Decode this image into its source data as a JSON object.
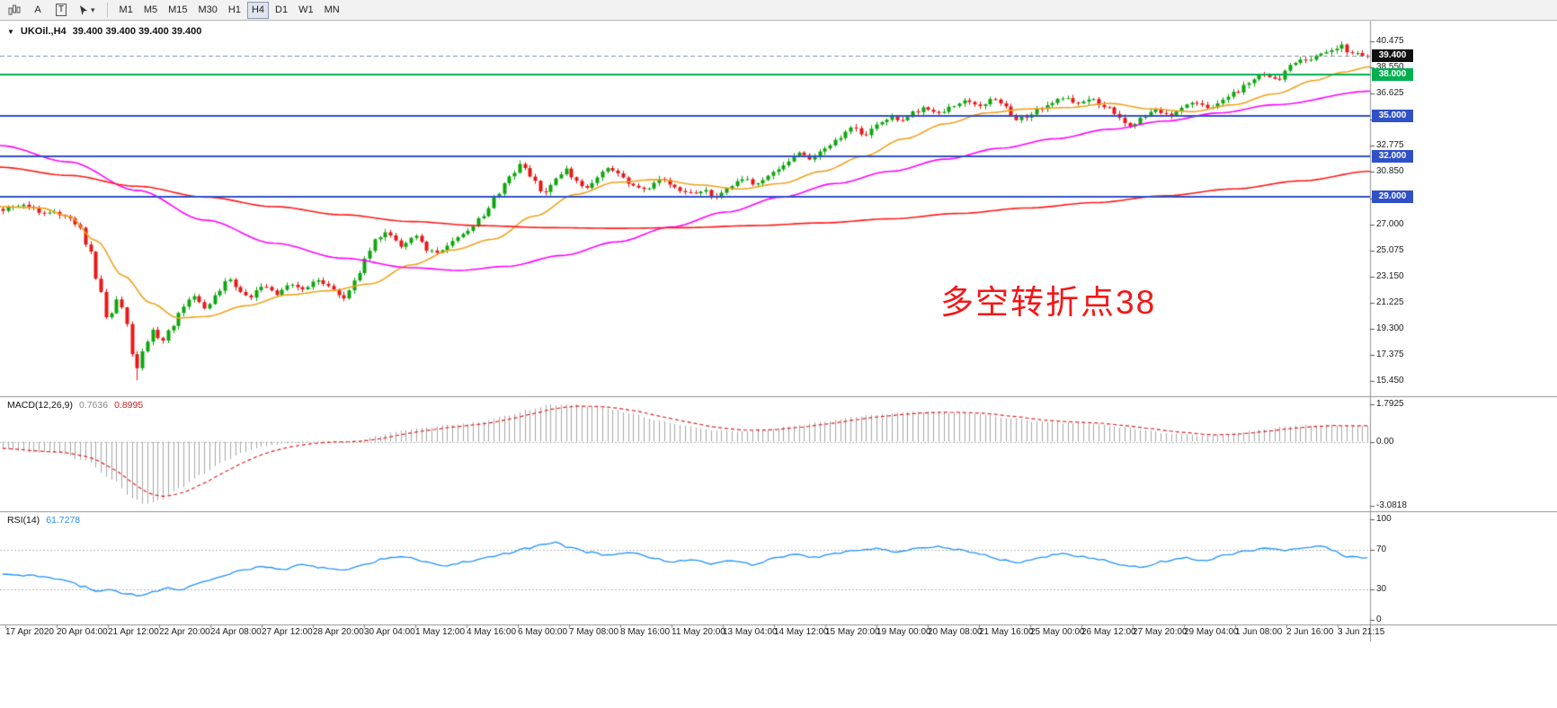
{
  "toolbar": {
    "letter_a": "A",
    "letter_t": "T",
    "chevron_glyph": "▾",
    "timeframes": [
      "M1",
      "M5",
      "M15",
      "M30",
      "H1",
      "H4",
      "D1",
      "W1",
      "MN"
    ],
    "active_timeframe": "H4"
  },
  "chart": {
    "dropdown_glyph": "▼",
    "title": "UKOil.,H4",
    "ohlc": "39.400 39.400 39.400 39.400",
    "annotation": "多空转折点38"
  },
  "macd_panel": {
    "name": "MACD(12,26,9)",
    "value_main": "0.7636",
    "value_signal": "0.8995",
    "axis_labels": [
      "1.7925",
      "0.00",
      "-3.0818"
    ]
  },
  "rsi_panel": {
    "name": "RSI(14)",
    "value": "61.7278",
    "axis_labels": [
      "100",
      "70",
      "30",
      "0"
    ]
  },
  "price_axis_labels": [
    "40.475",
    "38.550",
    "36.625",
    "34.700",
    "32.775",
    "30.850",
    "28.925",
    "27.000",
    "25.075",
    "23.150",
    "21.225",
    "19.300",
    "17.375",
    "15.450"
  ],
  "time_axis_labels": [
    "17 Apr 2020",
    "20 Apr 04:00",
    "21 Apr 12:00",
    "22 Apr 20:00",
    "24 Apr 08:00",
    "27 Apr 12:00",
    "28 Apr 20:00",
    "30 Apr 04:00",
    "1 May 12:00",
    "4 May 16:00",
    "6 May 00:00",
    "7 May 08:00",
    "8 May 16:00",
    "11 May 20:00",
    "13 May 04:00",
    "14 May 12:00",
    "15 May 20:00",
    "19 May 00:00",
    "20 May 08:00",
    "21 May 16:00",
    "25 May 00:00",
    "26 May 12:00",
    "27 May 20:00",
    "29 May 04:00",
    "1 Jun 08:00",
    "2 Jun 16:00",
    "3 Jun 21:15"
  ],
  "chart_data": {
    "type": "candlestick",
    "symbol": "UKOil",
    "period": "H4",
    "current_price": 39.4,
    "num_candles": 265,
    "up_color": "#0fa50f",
    "down_color": "#e81717",
    "annotation_color": "#f21717",
    "low_spike": 15.5,
    "high_spike": 40.45,
    "close_path": [
      [
        0.0,
        28.1
      ],
      [
        0.015,
        28.4
      ],
      [
        0.03,
        27.9
      ],
      [
        0.045,
        27.7
      ],
      [
        0.055,
        26.9
      ],
      [
        0.063,
        25.2
      ],
      [
        0.07,
        22.6
      ],
      [
        0.077,
        19.8
      ],
      [
        0.083,
        21.4
      ],
      [
        0.089,
        20.6
      ],
      [
        0.094,
        17.6
      ],
      [
        0.098,
        16.3
      ],
      [
        0.103,
        17.8
      ],
      [
        0.11,
        19.2
      ],
      [
        0.116,
        18.2
      ],
      [
        0.123,
        19.3
      ],
      [
        0.132,
        20.9
      ],
      [
        0.14,
        21.7
      ],
      [
        0.148,
        20.9
      ],
      [
        0.157,
        21.8
      ],
      [
        0.165,
        22.9
      ],
      [
        0.172,
        22.2
      ],
      [
        0.18,
        21.6
      ],
      [
        0.19,
        22.4
      ],
      [
        0.2,
        21.9
      ],
      [
        0.21,
        22.6
      ],
      [
        0.22,
        22.1
      ],
      [
        0.23,
        22.9
      ],
      [
        0.24,
        22.3
      ],
      [
        0.25,
        21.6
      ],
      [
        0.258,
        22.8
      ],
      [
        0.266,
        24.6
      ],
      [
        0.274,
        26.0
      ],
      [
        0.282,
        26.4
      ],
      [
        0.292,
        25.4
      ],
      [
        0.302,
        26.1
      ],
      [
        0.312,
        25.1
      ],
      [
        0.32,
        24.9
      ],
      [
        0.33,
        25.9
      ],
      [
        0.34,
        26.4
      ],
      [
        0.352,
        27.6
      ],
      [
        0.362,
        29.2
      ],
      [
        0.372,
        30.6
      ],
      [
        0.38,
        31.5
      ],
      [
        0.388,
        30.4
      ],
      [
        0.396,
        29.3
      ],
      [
        0.404,
        30.2
      ],
      [
        0.412,
        31.0
      ],
      [
        0.42,
        30.3
      ],
      [
        0.428,
        29.6
      ],
      [
        0.436,
        30.5
      ],
      [
        0.444,
        31.2
      ],
      [
        0.452,
        30.6
      ],
      [
        0.462,
        29.9
      ],
      [
        0.472,
        29.6
      ],
      [
        0.482,
        30.3
      ],
      [
        0.492,
        29.8
      ],
      [
        0.502,
        29.2
      ],
      [
        0.512,
        29.5
      ],
      [
        0.522,
        29.1
      ],
      [
        0.532,
        29.8
      ],
      [
        0.542,
        30.4
      ],
      [
        0.552,
        29.9
      ],
      [
        0.562,
        30.7
      ],
      [
        0.572,
        31.4
      ],
      [
        0.582,
        32.2
      ],
      [
        0.592,
        31.8
      ],
      [
        0.602,
        32.6
      ],
      [
        0.612,
        33.4
      ],
      [
        0.622,
        34.1
      ],
      [
        0.632,
        33.6
      ],
      [
        0.642,
        34.4
      ],
      [
        0.65,
        34.9
      ],
      [
        0.658,
        34.5
      ],
      [
        0.666,
        35.2
      ],
      [
        0.676,
        35.6
      ],
      [
        0.686,
        35.1
      ],
      [
        0.696,
        35.7
      ],
      [
        0.706,
        36.1
      ],
      [
        0.716,
        35.7
      ],
      [
        0.726,
        36.3
      ],
      [
        0.734,
        35.6
      ],
      [
        0.742,
        34.7
      ],
      [
        0.75,
        34.9
      ],
      [
        0.758,
        35.5
      ],
      [
        0.768,
        35.9
      ],
      [
        0.778,
        36.4
      ],
      [
        0.788,
        35.9
      ],
      [
        0.798,
        36.2
      ],
      [
        0.808,
        35.6
      ],
      [
        0.818,
        34.9
      ],
      [
        0.826,
        34.1
      ],
      [
        0.834,
        34.8
      ],
      [
        0.844,
        35.4
      ],
      [
        0.854,
        35.0
      ],
      [
        0.864,
        35.6
      ],
      [
        0.874,
        36.0
      ],
      [
        0.884,
        35.5
      ],
      [
        0.894,
        36.2
      ],
      [
        0.904,
        36.8
      ],
      [
        0.914,
        37.5
      ],
      [
        0.924,
        38.1
      ],
      [
        0.934,
        37.7
      ],
      [
        0.944,
        38.7
      ],
      [
        0.954,
        39.1
      ],
      [
        0.964,
        39.4
      ],
      [
        0.972,
        39.8
      ],
      [
        0.98,
        40.15
      ],
      [
        0.988,
        39.6
      ],
      [
        1.0,
        39.4
      ]
    ],
    "moving_averages": [
      {
        "name": "ma-fast",
        "color": "#f0a21e",
        "path": [
          [
            0,
            28.3
          ],
          [
            0.03,
            28.2
          ],
          [
            0.05,
            27.6
          ],
          [
            0.07,
            25.8
          ],
          [
            0.09,
            23.2
          ],
          [
            0.11,
            21.2
          ],
          [
            0.13,
            20.1
          ],
          [
            0.15,
            20.2
          ],
          [
            0.18,
            21.0
          ],
          [
            0.21,
            21.8
          ],
          [
            0.24,
            22.1
          ],
          [
            0.27,
            22.6
          ],
          [
            0.3,
            24.0
          ],
          [
            0.33,
            25.1
          ],
          [
            0.36,
            25.9
          ],
          [
            0.39,
            27.6
          ],
          [
            0.42,
            29.2
          ],
          [
            0.45,
            30.1
          ],
          [
            0.48,
            30.3
          ],
          [
            0.51,
            29.9
          ],
          [
            0.54,
            29.6
          ],
          [
            0.57,
            30.0
          ],
          [
            0.6,
            30.9
          ],
          [
            0.63,
            32.0
          ],
          [
            0.66,
            33.3
          ],
          [
            0.69,
            34.4
          ],
          [
            0.72,
            35.2
          ],
          [
            0.75,
            35.5
          ],
          [
            0.78,
            35.6
          ],
          [
            0.81,
            35.9
          ],
          [
            0.84,
            35.5
          ],
          [
            0.87,
            35.3
          ],
          [
            0.9,
            35.8
          ],
          [
            0.93,
            36.6
          ],
          [
            0.96,
            37.6
          ],
          [
            0.98,
            38.2
          ],
          [
            1.0,
            38.6
          ]
        ]
      },
      {
        "name": "ma-medium",
        "color": "#ff00ff",
        "path": [
          [
            0,
            32.8
          ],
          [
            0.05,
            31.6
          ],
          [
            0.1,
            29.5
          ],
          [
            0.15,
            27.3
          ],
          [
            0.2,
            25.6
          ],
          [
            0.25,
            24.5
          ],
          [
            0.3,
            23.8
          ],
          [
            0.335,
            23.6
          ],
          [
            0.37,
            23.9
          ],
          [
            0.41,
            24.7
          ],
          [
            0.45,
            25.7
          ],
          [
            0.49,
            26.8
          ],
          [
            0.53,
            27.9
          ],
          [
            0.57,
            29.0
          ],
          [
            0.61,
            30.0
          ],
          [
            0.65,
            30.9
          ],
          [
            0.69,
            31.8
          ],
          [
            0.73,
            32.6
          ],
          [
            0.77,
            33.3
          ],
          [
            0.81,
            34.0
          ],
          [
            0.85,
            34.6
          ],
          [
            0.89,
            35.2
          ],
          [
            0.93,
            35.8
          ],
          [
            1.0,
            36.8
          ]
        ]
      },
      {
        "name": "ma-slow",
        "color": "#ff1a1a",
        "path": [
          [
            0,
            31.2
          ],
          [
            0.05,
            30.6
          ],
          [
            0.1,
            29.8
          ],
          [
            0.15,
            29.0
          ],
          [
            0.2,
            28.3
          ],
          [
            0.25,
            27.7
          ],
          [
            0.3,
            27.2
          ],
          [
            0.35,
            26.9
          ],
          [
            0.4,
            26.75
          ],
          [
            0.45,
            26.7
          ],
          [
            0.5,
            26.75
          ],
          [
            0.55,
            26.9
          ],
          [
            0.6,
            27.1
          ],
          [
            0.65,
            27.4
          ],
          [
            0.7,
            27.8
          ],
          [
            0.75,
            28.2
          ],
          [
            0.8,
            28.6
          ],
          [
            0.85,
            29.1
          ],
          [
            0.9,
            29.6
          ],
          [
            0.95,
            30.2
          ],
          [
            1.0,
            30.9
          ]
        ]
      }
    ],
    "horizontal_lines": [
      {
        "price": 38.0,
        "label": "38.000",
        "color": "#00b050"
      },
      {
        "price": 35.0,
        "label": "35.000",
        "color": "#3050c8"
      },
      {
        "price": 32.0,
        "label": "32.000",
        "color": "#3050c8"
      },
      {
        "price": 29.0,
        "label": "29.000",
        "color": "#3050c8"
      }
    ],
    "price_tag": {
      "label": "39.400",
      "bg": "#101010",
      "line_color": "#8090a8"
    },
    "macd": {
      "params": "12,26,9",
      "main": 0.7636,
      "signal": 0.8995,
      "range_top": 1.7925,
      "range_bottom": -3.0818,
      "hist_color": "#a6a6a6",
      "signal_color": "#e02020",
      "path": [
        [
          0,
          -0.35
        ],
        [
          0.02,
          -0.5
        ],
        [
          0.04,
          -0.55
        ],
        [
          0.06,
          -0.9
        ],
        [
          0.08,
          -1.8
        ],
        [
          0.095,
          -2.7
        ],
        [
          0.105,
          -3.0
        ],
        [
          0.115,
          -2.8
        ],
        [
          0.13,
          -2.2
        ],
        [
          0.145,
          -1.6
        ],
        [
          0.16,
          -1.0
        ],
        [
          0.175,
          -0.55
        ],
        [
          0.19,
          -0.25
        ],
        [
          0.205,
          -0.1
        ],
        [
          0.22,
          0.0
        ],
        [
          0.235,
          0.05
        ],
        [
          0.25,
          0.0
        ],
        [
          0.26,
          0.05
        ],
        [
          0.275,
          0.25
        ],
        [
          0.29,
          0.5
        ],
        [
          0.31,
          0.7
        ],
        [
          0.33,
          0.8
        ],
        [
          0.35,
          0.95
        ],
        [
          0.37,
          1.25
        ],
        [
          0.385,
          1.55
        ],
        [
          0.4,
          1.75
        ],
        [
          0.415,
          1.79
        ],
        [
          0.43,
          1.7
        ],
        [
          0.445,
          1.55
        ],
        [
          0.46,
          1.35
        ],
        [
          0.48,
          1.05
        ],
        [
          0.5,
          0.75
        ],
        [
          0.52,
          0.55
        ],
        [
          0.54,
          0.5
        ],
        [
          0.56,
          0.6
        ],
        [
          0.58,
          0.75
        ],
        [
          0.6,
          0.95
        ],
        [
          0.62,
          1.15
        ],
        [
          0.64,
          1.3
        ],
        [
          0.66,
          1.4
        ],
        [
          0.68,
          1.45
        ],
        [
          0.7,
          1.4
        ],
        [
          0.72,
          1.3
        ],
        [
          0.74,
          1.1
        ],
        [
          0.76,
          0.95
        ],
        [
          0.78,
          0.9
        ],
        [
          0.8,
          0.85
        ],
        [
          0.82,
          0.7
        ],
        [
          0.84,
          0.5
        ],
        [
          0.86,
          0.35
        ],
        [
          0.88,
          0.3
        ],
        [
          0.9,
          0.4
        ],
        [
          0.92,
          0.55
        ],
        [
          0.94,
          0.7
        ],
        [
          0.96,
          0.8
        ],
        [
          0.98,
          0.78
        ],
        [
          1.0,
          0.7636
        ]
      ]
    },
    "rsi": {
      "period": 14,
      "value": 61.7278,
      "levels": [
        70,
        30
      ],
      "line_color": "#1e90ff",
      "path": [
        [
          0,
          46
        ],
        [
          0.02,
          44
        ],
        [
          0.045,
          40
        ],
        [
          0.06,
          33
        ],
        [
          0.07,
          28
        ],
        [
          0.08,
          30
        ],
        [
          0.09,
          26
        ],
        [
          0.1,
          24.5
        ],
        [
          0.11,
          28
        ],
        [
          0.12,
          32
        ],
        [
          0.13,
          30
        ],
        [
          0.145,
          37
        ],
        [
          0.16,
          43
        ],
        [
          0.175,
          49
        ],
        [
          0.19,
          53
        ],
        [
          0.205,
          50
        ],
        [
          0.22,
          55
        ],
        [
          0.235,
          52
        ],
        [
          0.25,
          49
        ],
        [
          0.265,
          55
        ],
        [
          0.28,
          61
        ],
        [
          0.295,
          63
        ],
        [
          0.31,
          58
        ],
        [
          0.325,
          54
        ],
        [
          0.34,
          58
        ],
        [
          0.355,
          62
        ],
        [
          0.37,
          66
        ],
        [
          0.385,
          71
        ],
        [
          0.395,
          75
        ],
        [
          0.405,
          77
        ],
        [
          0.415,
          72
        ],
        [
          0.43,
          67
        ],
        [
          0.445,
          64
        ],
        [
          0.46,
          67
        ],
        [
          0.475,
          62
        ],
        [
          0.49,
          58
        ],
        [
          0.505,
          60
        ],
        [
          0.52,
          56
        ],
        [
          0.535,
          59
        ],
        [
          0.55,
          55
        ],
        [
          0.565,
          61
        ],
        [
          0.58,
          65
        ],
        [
          0.595,
          62
        ],
        [
          0.61,
          66
        ],
        [
          0.625,
          69
        ],
        [
          0.64,
          71
        ],
        [
          0.655,
          68
        ],
        [
          0.67,
          71
        ],
        [
          0.685,
          73
        ],
        [
          0.7,
          70
        ],
        [
          0.715,
          66
        ],
        [
          0.73,
          60
        ],
        [
          0.745,
          57
        ],
        [
          0.76,
          62
        ],
        [
          0.775,
          66
        ],
        [
          0.79,
          63
        ],
        [
          0.805,
          60
        ],
        [
          0.82,
          55
        ],
        [
          0.835,
          52
        ],
        [
          0.85,
          58
        ],
        [
          0.865,
          62
        ],
        [
          0.88,
          59
        ],
        [
          0.895,
          64
        ],
        [
          0.91,
          68
        ],
        [
          0.925,
          71
        ],
        [
          0.94,
          69
        ],
        [
          0.955,
          72
        ],
        [
          0.965,
          74
        ],
        [
          0.975,
          69
        ],
        [
          0.985,
          63
        ],
        [
          1.0,
          61.7
        ]
      ]
    }
  }
}
